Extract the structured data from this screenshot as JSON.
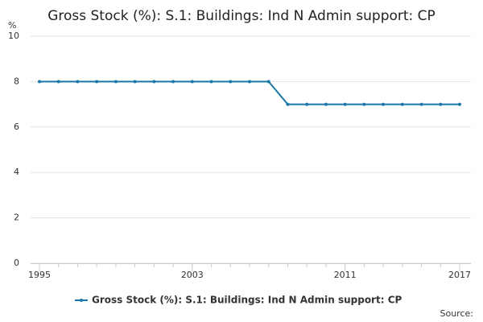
{
  "chart_data": {
    "type": "line",
    "title": "Gross Stock (%): S.1: Buildings: Ind N Admin support: CP",
    "y_unit": "%",
    "source": "Source:",
    "x": [
      1995,
      1996,
      1997,
      1998,
      1999,
      2000,
      2001,
      2002,
      2003,
      2004,
      2005,
      2006,
      2007,
      2008,
      2009,
      2010,
      2011,
      2012,
      2013,
      2014,
      2015,
      2016,
      2017
    ],
    "xlim": [
      1995,
      2017
    ],
    "xticks": [
      1995,
      2003,
      2011,
      2017
    ],
    "ylim": [
      0,
      10
    ],
    "yticks": [
      0,
      2,
      4,
      6,
      8,
      10
    ],
    "grid": true,
    "series": [
      {
        "name": "Gross Stock (%): S.1: Buildings: Ind N Admin support: CP",
        "color": "#1a78a8",
        "values": [
          8,
          8,
          8,
          8,
          8,
          8,
          8,
          8,
          8,
          8,
          8,
          8,
          8,
          7,
          7,
          7,
          7,
          7,
          7,
          7,
          7,
          7,
          7
        ]
      }
    ]
  }
}
